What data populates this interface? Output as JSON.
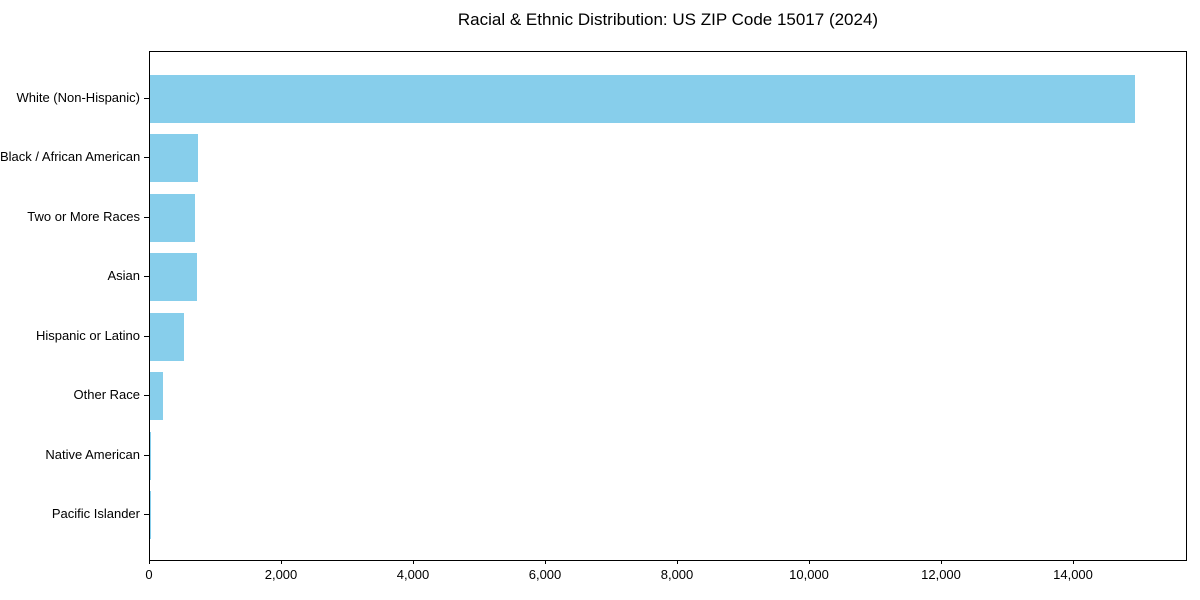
{
  "chart_data": {
    "type": "bar",
    "orientation": "horizontal",
    "title": "Racial & Ethnic Distribution: US ZIP Code 15017 (2024)",
    "categories": [
      "White (Non-Hispanic)",
      "Black / African American",
      "Two or More Races",
      "Asian",
      "Hispanic or Latino",
      "Other Race",
      "Native American",
      "Pacific Islander"
    ],
    "values": [
      14930,
      725,
      685,
      705,
      520,
      200,
      15,
      5
    ],
    "xlabel": "",
    "ylabel": "",
    "xlim": [
      0,
      15700
    ],
    "xticks": [
      {
        "value": 0,
        "label": "0"
      },
      {
        "value": 2000,
        "label": "2,000"
      },
      {
        "value": 4000,
        "label": "4,000"
      },
      {
        "value": 6000,
        "label": "6,000"
      },
      {
        "value": 8000,
        "label": "8,000"
      },
      {
        "value": 10000,
        "label": "10,000"
      },
      {
        "value": 12000,
        "label": "12,000"
      },
      {
        "value": 14000,
        "label": "14,000"
      }
    ],
    "bar_color": "#87CEEB",
    "grid": false,
    "legend": null,
    "background_color": "#ffffff",
    "spine_color": "#000000"
  }
}
